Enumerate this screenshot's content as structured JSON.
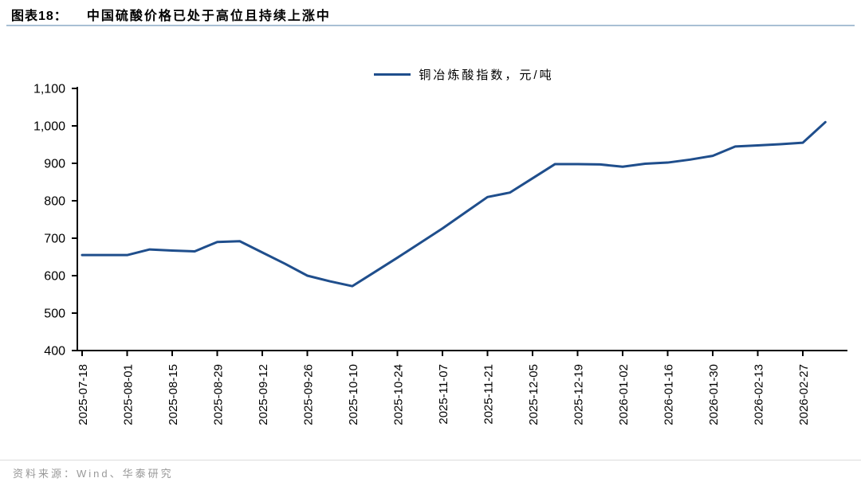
{
  "header": {
    "figure_label": "图表18：",
    "title": "中国硫酸价格已处于高位且持续上涨中"
  },
  "legend": {
    "label": "铜冶炼酸指数，元/吨"
  },
  "footer": {
    "source": "资料来源：Wind、华泰研究"
  },
  "colors": {
    "line": "#1F4E8C",
    "title_underline": "#A9BFD4",
    "divider": "#DCDCDC",
    "source_text": "#999999",
    "axis": "#000000"
  },
  "chart_data": {
    "type": "line",
    "title": "图表18： 中国硫酸价格已处于高位且持续上涨中",
    "xlabel": "",
    "ylabel": "",
    "ylim": [
      400,
      1100
    ],
    "y_ticks": [
      400,
      500,
      600,
      700,
      800,
      900,
      1000,
      1100
    ],
    "grid": false,
    "legend_position": "top-center",
    "series": [
      {
        "name": "铜冶炼酸指数，元/吨",
        "x": [
          "2025-07-18",
          "2025-07-25",
          "2025-08-01",
          "2025-08-08",
          "2025-08-15",
          "2025-08-22",
          "2025-08-29",
          "2025-09-05",
          "2025-09-12",
          "2025-09-19",
          "2025-09-26",
          "2025-10-03",
          "2025-10-10",
          "2025-10-17",
          "2025-10-24",
          "2025-10-31",
          "2025-11-07",
          "2025-11-14",
          "2025-11-21",
          "2025-11-28",
          "2025-12-05",
          "2025-12-12",
          "2025-12-19",
          "2025-12-26",
          "2026-01-02",
          "2026-01-09",
          "2026-01-16",
          "2026-01-23",
          "2026-01-30",
          "2026-02-06",
          "2026-02-13",
          "2026-02-20",
          "2026-02-27",
          "2026-03-06"
        ],
        "values": [
          655,
          655,
          655,
          670,
          667,
          665,
          690,
          692,
          662,
          632,
          600,
          585,
          572,
          610,
          648,
          687,
          726,
          768,
          810,
          822,
          860,
          898,
          898,
          897,
          891,
          899,
          902,
          910,
          920,
          945,
          948,
          951,
          955,
          1010
        ]
      }
    ],
    "x_tick_labels": [
      "2025-07-18",
      "2025-08-01",
      "2025-08-15",
      "2025-08-29",
      "2025-09-12",
      "2025-09-26",
      "2025-10-10",
      "2025-10-24",
      "2025-11-07",
      "2025-11-21",
      "2025-12-05",
      "2025-12-19",
      "2026-01-02",
      "2026-01-16",
      "2026-01-30",
      "2026-02-13",
      "2026-02-27"
    ]
  }
}
